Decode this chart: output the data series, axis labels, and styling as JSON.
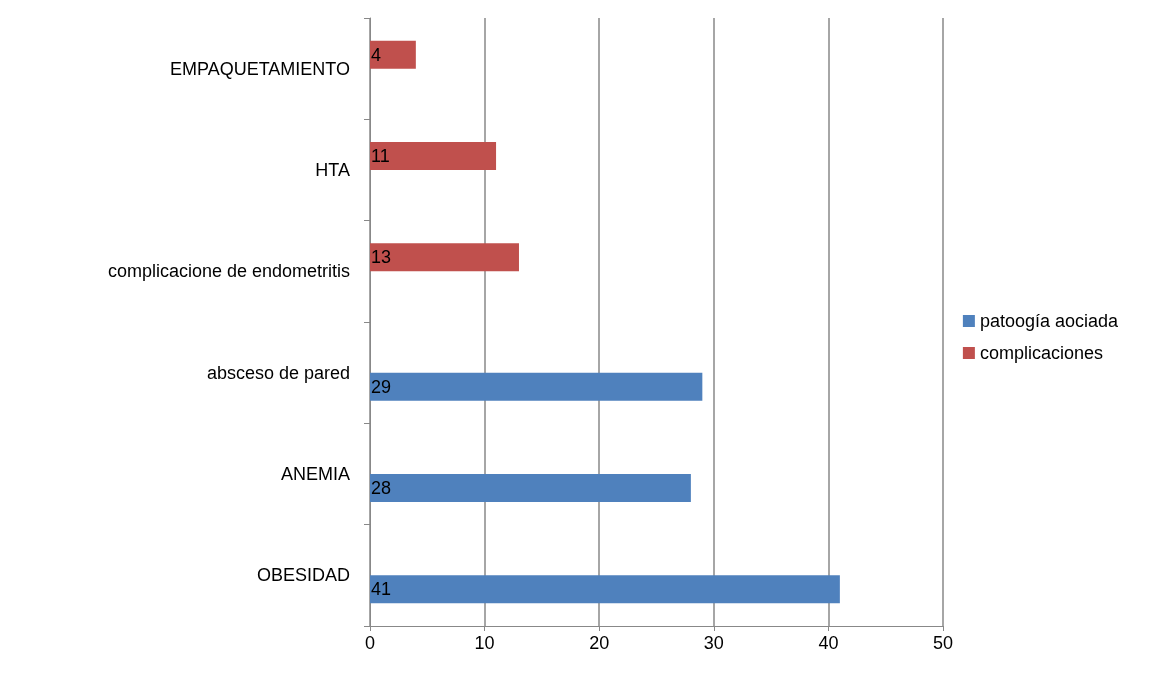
{
  "chart_data": {
    "type": "bar",
    "orientation": "horizontal",
    "categories": [
      "EMPAQUETAMIENTO",
      "HTA",
      "complicacione de endometritis",
      "absceso de pared",
      "ANEMIA",
      "OBESIDAD"
    ],
    "series": [
      {
        "name": "complicaciones",
        "color": "#c0504d",
        "values": [
          4,
          11,
          13,
          null,
          null,
          null
        ]
      },
      {
        "name": "patoogía aociada",
        "color": "#4f81bd",
        "values": [
          null,
          null,
          null,
          29,
          28,
          41
        ]
      }
    ],
    "xlim": [
      0,
      50
    ],
    "xticks": [
      0,
      10,
      20,
      30,
      40,
      50
    ],
    "grid": "x",
    "legend": "right",
    "data_labels": true
  }
}
